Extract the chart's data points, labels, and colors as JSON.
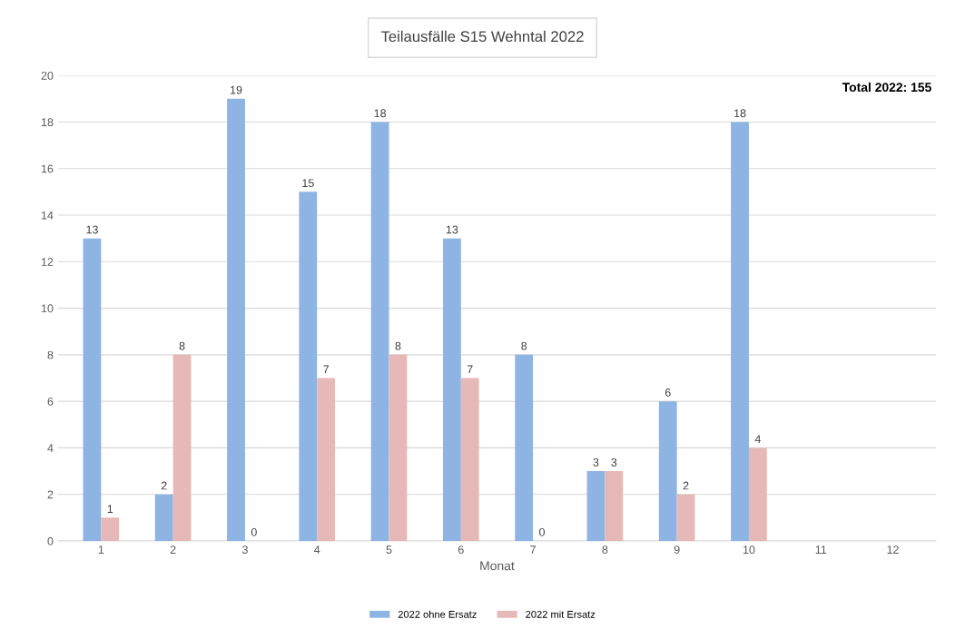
{
  "chart_data": {
    "type": "bar",
    "title": "Teilausfälle S15 Wehntal 2022",
    "xlabel": "Monat",
    "categories": [
      "1",
      "2",
      "3",
      "4",
      "5",
      "6",
      "7",
      "8",
      "9",
      "10",
      "11",
      "12"
    ],
    "series": [
      {
        "name": "2022 ohne Ersatz",
        "color": "#8db4e2",
        "values": [
          13,
          2,
          19,
          15,
          18,
          13,
          8,
          3,
          6,
          18,
          null,
          null
        ]
      },
      {
        "name": "2022 mit Ersatz",
        "color": "#e6b9b8",
        "values": [
          1,
          8,
          0,
          7,
          8,
          7,
          0,
          3,
          2,
          4,
          null,
          null
        ]
      }
    ],
    "ylim": [
      0,
      20
    ],
    "yticks": [
      0,
      2,
      4,
      6,
      8,
      10,
      12,
      14,
      16,
      18,
      20
    ],
    "grid": "y",
    "legend": "bottom",
    "data_labels": true,
    "annotations": [
      "Total 2022: 155"
    ]
  }
}
